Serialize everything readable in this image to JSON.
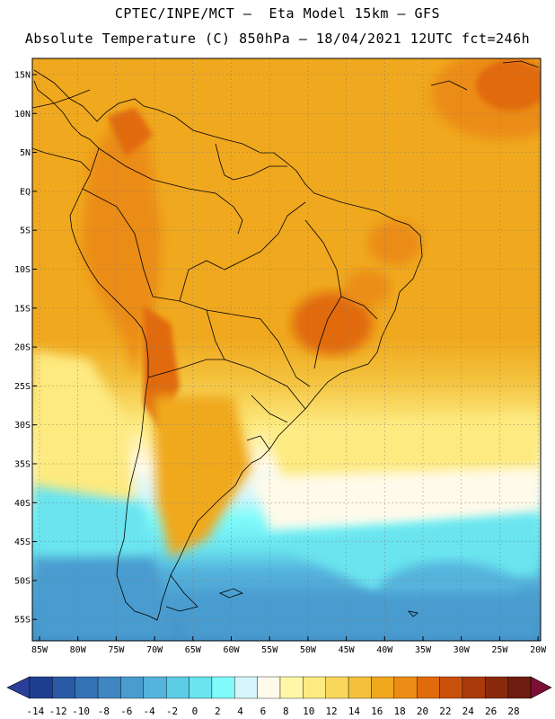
{
  "title_line1": "CPTEC/INPE/MCT –  Eta Model 15km – GFS",
  "title_line2": "Absolute Temperature (C) 850hPa – 18/04/2021 12UTC fct=246h",
  "lat_labels": [
    "15N",
    "10N",
    "5N",
    "EQ",
    "5S",
    "10S",
    "15S",
    "20S",
    "25S",
    "30S",
    "35S",
    "40S",
    "45S",
    "50S",
    "55S"
  ],
  "lon_labels": [
    "85W",
    "80W",
    "75W",
    "70W",
    "65W",
    "60W",
    "55W",
    "50W",
    "45W",
    "40W",
    "35W",
    "30W",
    "25W",
    "20W"
  ],
  "colorbar": {
    "ticks": [
      "-14",
      "-12",
      "-10",
      "-8",
      "-6",
      "-4",
      "-2",
      "0",
      "2",
      "4",
      "6",
      "8",
      "10",
      "12",
      "14",
      "16",
      "18",
      "20",
      "22",
      "24",
      "26",
      "28"
    ],
    "colors": [
      "#1e3f8f",
      "#2a5aa6",
      "#3571b5",
      "#3f86c2",
      "#4a9ccf",
      "#55b3dc",
      "#5ccbe6",
      "#6ae4ef",
      "#80fbfb",
      "#d6f6fb",
      "#fffaea",
      "#fff7a8",
      "#fdea80",
      "#f8d75c",
      "#f3c13c",
      "#f0a81e",
      "#eb8c14",
      "#e16a0a",
      "#c9500b",
      "#aa3a0c",
      "#8a2a0c",
      "#6e1c10"
    ],
    "under_color": "#2a3f9a",
    "over_color": "#7d0e36"
  }
}
